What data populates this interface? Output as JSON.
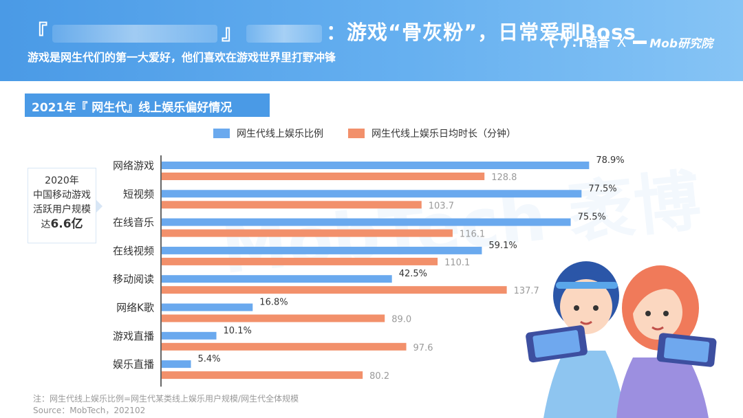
{
  "header": {
    "title_open": "『",
    "title_close": "』",
    "title_tail": "：游戏“骨灰粉”，日常爱刷Boss",
    "subtitle": "游戏是网生代们的第一大爱好，他们喜欢在游戏世界里打野冲锋"
  },
  "logos": {
    "logo_a": ".T语音",
    "separator": "X",
    "logo_b": "Mob研究院"
  },
  "colors": {
    "header_blue": "#4a9ae6",
    "series_blue": "#6aa9ee",
    "series_orange": "#f2906b"
  },
  "side_box": {
    "line1": "2020年",
    "line2": "中国移动游戏",
    "line3": "活跃用户规模",
    "line4_prefix": "达",
    "line4_value": "6.6亿"
  },
  "footnote": {
    "note": "注：网生代线上娱乐比例=网生代某类线上娱乐用户规模/网生代全体规模",
    "source": "Source：MobTech，202102"
  },
  "chart_data": {
    "type": "bar",
    "orientation": "horizontal",
    "title": "2021年『 网生代』线上娱乐偏好情况",
    "categories": [
      "网络游戏",
      "短视频",
      "在线音乐",
      "在线视频",
      "移动阅读",
      "网络K歌",
      "游戏直播",
      "娱乐直播"
    ],
    "series": [
      {
        "name": "网生代线上娱乐比例",
        "values": [
          78.9,
          77.5,
          75.5,
          59.1,
          42.5,
          16.8,
          10.1,
          5.4
        ],
        "labels": [
          "78.9%",
          "77.5%",
          "75.5%",
          "59.1%",
          "42.5%",
          "16.8%",
          "10.1%",
          "5.4%"
        ]
      },
      {
        "name": "网生代线上娱乐日均时长（分钟）",
        "values": [
          128.8,
          103.7,
          116.1,
          110.1,
          137.7,
          89.0,
          97.6,
          80.2
        ],
        "labels": [
          "128.8",
          "103.7",
          "116.1",
          "110.1",
          "137.7",
          "89.0",
          "97.6",
          "80.2"
        ]
      }
    ],
    "legend_position": "top",
    "grid": false
  }
}
